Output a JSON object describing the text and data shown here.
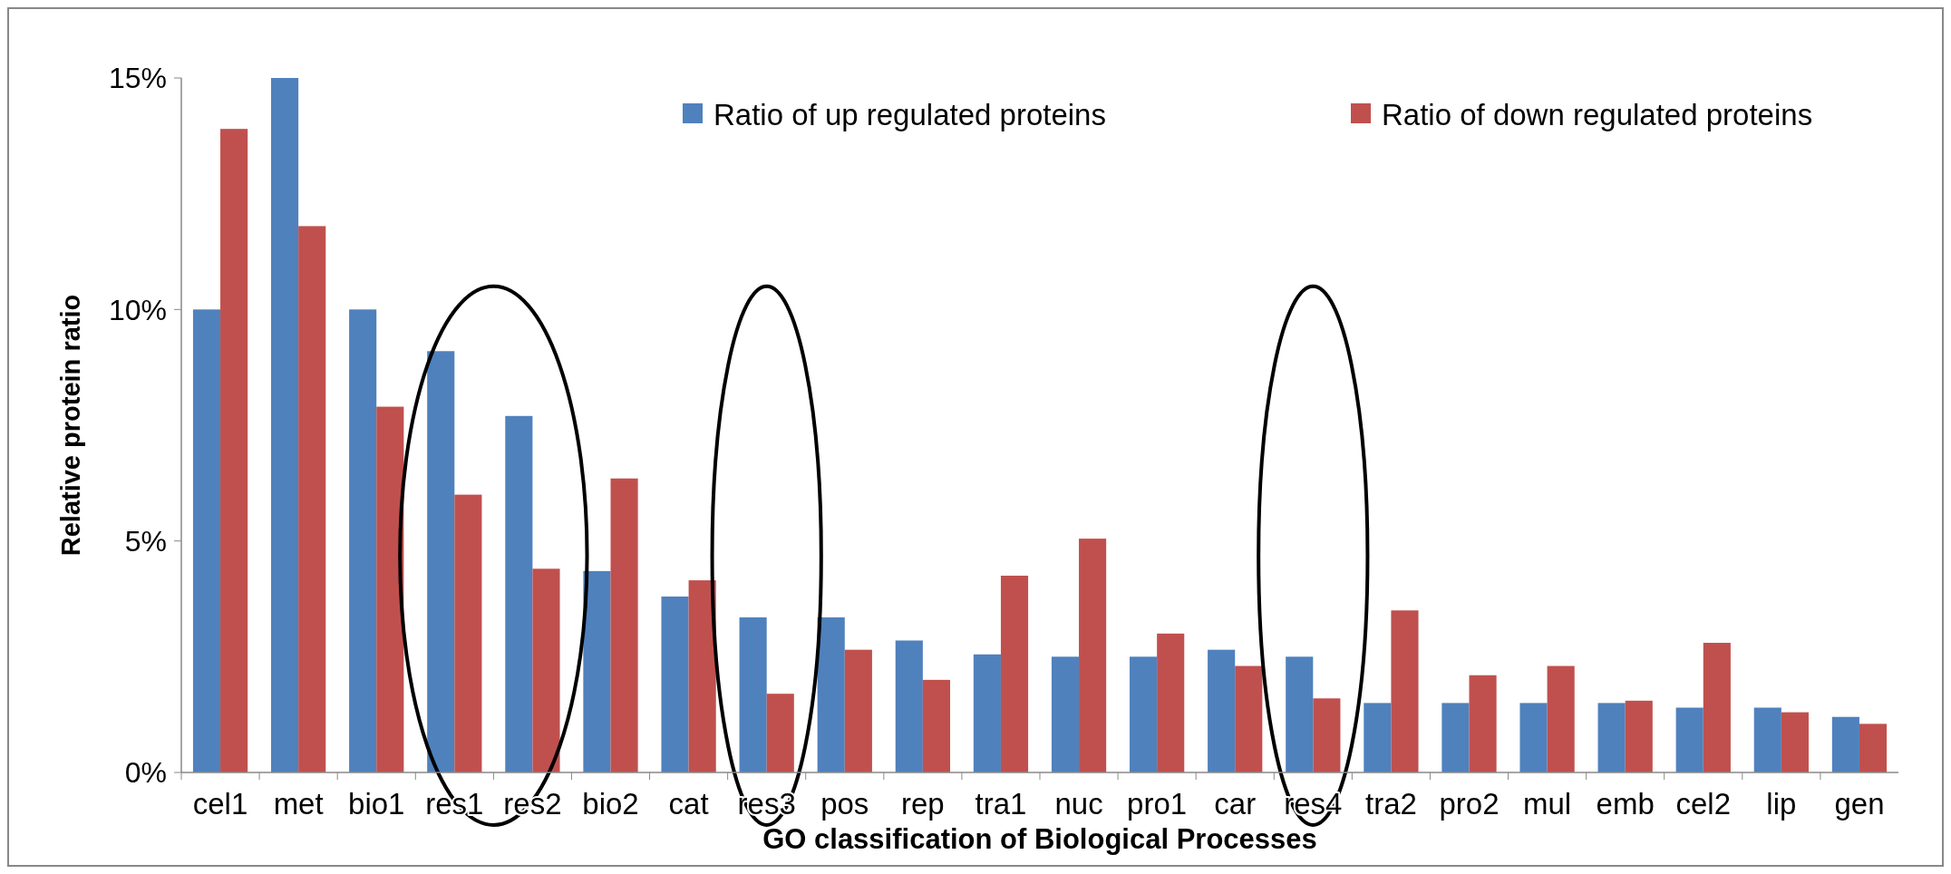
{
  "chart_data": {
    "type": "bar",
    "xlabel": "GO classification of Biological Processes",
    "ylabel": "Relative protein ratio",
    "categories": [
      "cel1",
      "met",
      "bio1",
      "res1",
      "res2",
      "bio2",
      "cat",
      "res3",
      "pos",
      "rep",
      "tra1",
      "nuc",
      "pro1",
      "car",
      "res4",
      "tra2",
      "pro2",
      "mul",
      "emb",
      "cel2",
      "lip",
      "gen"
    ],
    "series": [
      {
        "name": "Ratio of up regulated proteins",
        "color": "#4f81bd",
        "values": [
          10.0,
          15.0,
          10.0,
          9.1,
          7.7,
          4.35,
          3.8,
          3.35,
          3.35,
          2.85,
          2.55,
          2.5,
          2.5,
          2.65,
          2.5,
          1.5,
          1.5,
          1.5,
          1.5,
          1.4,
          1.4,
          1.2
        ]
      },
      {
        "name": "Ratio of down regulated proteins",
        "color": "#c0504d",
        "values": [
          13.9,
          11.8,
          7.9,
          6.0,
          4.4,
          6.35,
          4.15,
          1.7,
          2.65,
          2.0,
          4.25,
          5.05,
          3.0,
          2.3,
          1.6,
          3.5,
          2.1,
          2.3,
          1.55,
          2.8,
          1.3,
          1.05
        ]
      }
    ],
    "ylim": [
      0,
      15
    ],
    "yticks": [
      {
        "value": 0,
        "label": "0%"
      },
      {
        "value": 5,
        "label": "5%"
      },
      {
        "value": 10,
        "label": "10%"
      },
      {
        "value": 15,
        "label": "15%"
      }
    ],
    "legend": "top right"
  }
}
